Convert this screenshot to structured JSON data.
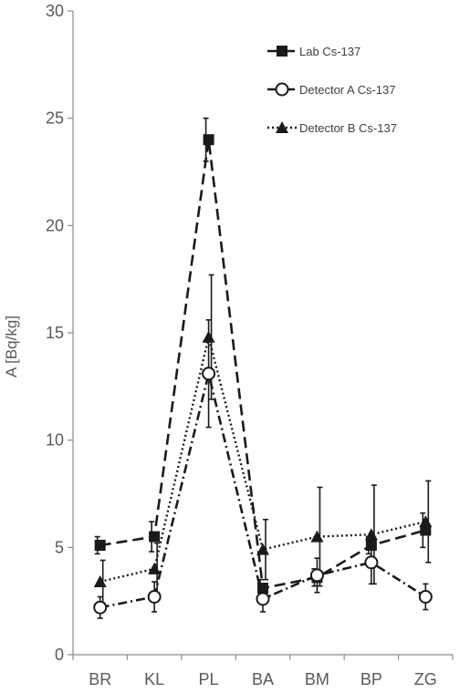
{
  "chart_data": {
    "type": "line",
    "title": "",
    "xlabel": "",
    "ylabel": "A  [Bq/kg]",
    "ylim": [
      0,
      30
    ],
    "yticks": [
      0,
      5,
      10,
      15,
      20,
      25,
      30
    ],
    "grid": false,
    "legend_position": "top-right",
    "categories": [
      "BR",
      "KL",
      "PL",
      "BA",
      "BM",
      "BP",
      "ZG"
    ],
    "series": [
      {
        "name": "Lab Cs-137",
        "marker": "filled-square",
        "line_style": "dashed",
        "color": "#1a1a1a",
        "values": [
          5.1,
          5.5,
          24.0,
          3.1,
          3.6,
          5.1,
          5.8
        ],
        "errors": [
          0.4,
          0.7,
          1.0,
          0.4,
          0.4,
          0.4,
          0.8
        ]
      },
      {
        "name": "Detector A Cs-137",
        "marker": "open-circle",
        "line_style": "dash-dot",
        "color": "#1a1a1a",
        "values": [
          2.2,
          2.7,
          13.1,
          2.6,
          3.7,
          4.3,
          2.7
        ],
        "errors": [
          0.5,
          0.7,
          2.5,
          0.6,
          0.8,
          1.0,
          0.6
        ]
      },
      {
        "name": "Detector B Cs-137",
        "marker": "filled-triangle",
        "line_style": "dotted",
        "color": "#1a1a1a",
        "values": [
          3.4,
          4.0,
          14.8,
          4.9,
          5.5,
          5.6,
          6.2
        ],
        "errors": [
          1.0,
          1.2,
          2.9,
          1.4,
          2.3,
          2.3,
          1.9
        ]
      }
    ]
  }
}
